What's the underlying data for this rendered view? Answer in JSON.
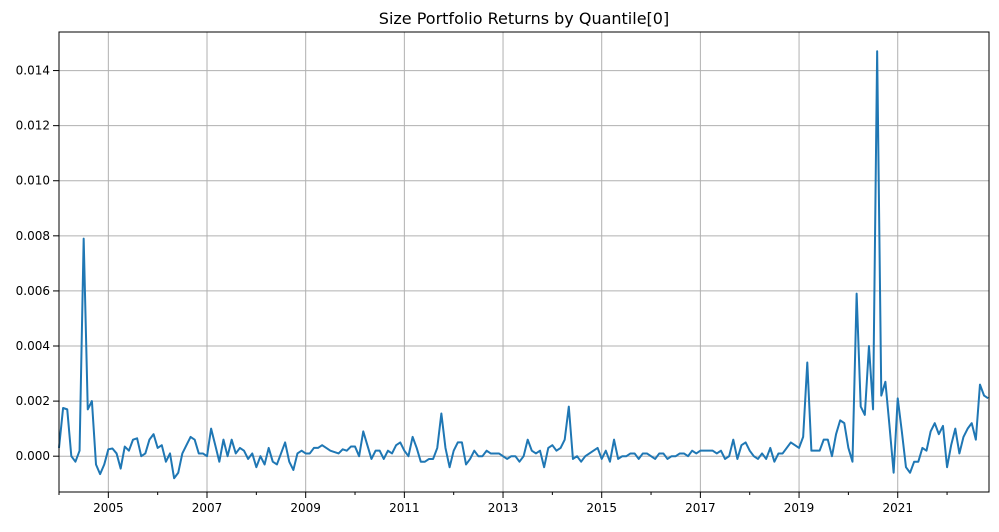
{
  "chart_data": {
    "type": "line",
    "title": "Size Portfolio Returns by Quantile[0]",
    "xlabel": "",
    "ylabel": "",
    "grid": true,
    "line_color": "#1f77b4",
    "xlim": [
      2004.0,
      2022.85
    ],
    "ylim": [
      -0.0013,
      0.0154
    ],
    "x_ticks": [
      2005,
      2007,
      2009,
      2011,
      2013,
      2015,
      2017,
      2019,
      2021
    ],
    "y_ticks": [
      0.0,
      0.002,
      0.004,
      0.006,
      0.008,
      0.01,
      0.012,
      0.014
    ],
    "x_tick_labels": [
      "2005",
      "2007",
      "2009",
      "2011",
      "2013",
      "2015",
      "2017",
      "2019",
      "2021"
    ],
    "y_tick_labels": [
      "0.000",
      "0.002",
      "0.004",
      "0.006",
      "0.008",
      "0.010",
      "0.012",
      "0.014"
    ],
    "series": [
      {
        "x": [
          2004.0,
          2004.083,
          2004.167,
          2004.25,
          2004.333,
          2004.417,
          2004.5,
          2004.583,
          2004.667,
          2004.75,
          2004.833,
          2004.917,
          2005.0,
          2005.083,
          2005.167,
          2005.25,
          2005.333,
          2005.417,
          2005.5,
          2005.583,
          2005.667,
          2005.75,
          2005.833,
          2005.917,
          2006.0,
          2006.083,
          2006.167,
          2006.25,
          2006.333,
          2006.417,
          2006.5,
          2006.583,
          2006.667,
          2006.75,
          2006.833,
          2006.917,
          2007.0,
          2007.083,
          2007.167,
          2007.25,
          2007.333,
          2007.417,
          2007.5,
          2007.583,
          2007.667,
          2007.75,
          2007.833,
          2007.917,
          2008.0,
          2008.083,
          2008.167,
          2008.25,
          2008.333,
          2008.417,
          2008.5,
          2008.583,
          2008.667,
          2008.75,
          2008.833,
          2008.917,
          2009.0,
          2009.083,
          2009.167,
          2009.25,
          2009.333,
          2009.417,
          2009.5,
          2009.583,
          2009.667,
          2009.75,
          2009.833,
          2009.917,
          2010.0,
          2010.083,
          2010.167,
          2010.25,
          2010.333,
          2010.417,
          2010.5,
          2010.583,
          2010.667,
          2010.75,
          2010.833,
          2010.917,
          2011.0,
          2011.083,
          2011.167,
          2011.25,
          2011.333,
          2011.417,
          2011.5,
          2011.583,
          2011.667,
          2011.75,
          2011.833,
          2011.917,
          2012.0,
          2012.083,
          2012.167,
          2012.25,
          2012.333,
          2012.417,
          2012.5,
          2012.583,
          2012.667,
          2012.75,
          2012.833,
          2012.917,
          2013.0,
          2013.083,
          2013.167,
          2013.25,
          2013.333,
          2013.417,
          2013.5,
          2013.583,
          2013.667,
          2013.75,
          2013.833,
          2013.917,
          2014.0,
          2014.083,
          2014.167,
          2014.25,
          2014.333,
          2014.417,
          2014.5,
          2014.583,
          2014.667,
          2014.75,
          2014.833,
          2014.917,
          2015.0,
          2015.083,
          2015.167,
          2015.25,
          2015.333,
          2015.417,
          2015.5,
          2015.583,
          2015.667,
          2015.75,
          2015.833,
          2015.917,
          2016.0,
          2016.083,
          2016.167,
          2016.25,
          2016.333,
          2016.417,
          2016.5,
          2016.583,
          2016.667,
          2016.75,
          2016.833,
          2016.917,
          2017.0,
          2017.083,
          2017.167,
          2017.25,
          2017.333,
          2017.417,
          2017.5,
          2017.583,
          2017.667,
          2017.75,
          2017.833,
          2017.917,
          2018.0,
          2018.083,
          2018.167,
          2018.25,
          2018.333,
          2018.417,
          2018.5,
          2018.583,
          2018.667,
          2018.75,
          2018.833,
          2018.917,
          2019.0,
          2019.083,
          2019.167,
          2019.25,
          2019.333,
          2019.417,
          2019.5,
          2019.583,
          2019.667,
          2019.75,
          2019.833,
          2019.917,
          2020.0,
          2020.083,
          2020.167,
          2020.25,
          2020.333,
          2020.417,
          2020.5,
          2020.583,
          2020.667,
          2020.75,
          2020.833,
          2020.917,
          2021.0,
          2021.083,
          2021.167,
          2021.25,
          2021.333,
          2021.417,
          2021.5,
          2021.583,
          2021.667,
          2021.75,
          2021.833,
          2021.917,
          2022.0,
          2022.083,
          2022.167,
          2022.25,
          2022.333,
          2022.417,
          2022.5,
          2022.583,
          2022.667,
          2022.75,
          2022.833
        ],
        "y": [
          0.0003,
          0.00175,
          0.0017,
          0.0,
          -0.0002,
          0.0002,
          0.0079,
          0.0017,
          0.002,
          -0.0003,
          -0.00065,
          -0.0003,
          0.00025,
          0.00028,
          0.0001,
          -0.00045,
          0.00035,
          0.0002,
          0.0006,
          0.00065,
          0.0,
          0.0001,
          0.0006,
          0.0008,
          0.0003,
          0.0004,
          -0.0002,
          0.0001,
          -0.0008,
          -0.0006,
          0.0001,
          0.0004,
          0.0007,
          0.0006,
          0.0001,
          0.0001,
          0.0,
          0.001,
          0.0004,
          -0.0002,
          0.0006,
          0.0,
          0.0006,
          0.0001,
          0.0003,
          0.0002,
          -0.0001,
          0.0001,
          -0.0004,
          0.0,
          -0.0003,
          0.0003,
          -0.0002,
          -0.0003,
          0.0001,
          0.0005,
          -0.0002,
          -0.0005,
          0.0001,
          0.0002,
          0.0001,
          0.0001,
          0.0003,
          0.0003,
          0.0004,
          0.0003,
          0.0002,
          0.00015,
          0.0001,
          0.00025,
          0.0002,
          0.00035,
          0.00035,
          0.0,
          0.0009,
          0.0004,
          -0.0001,
          0.0002,
          0.0002,
          -0.0001,
          0.0002,
          0.0001,
          0.0004,
          0.0005,
          0.0002,
          0.0,
          0.0007,
          0.0003,
          -0.0002,
          -0.0002,
          -0.0001,
          -0.0001,
          0.0003,
          0.00155,
          0.0003,
          -0.0004,
          0.0002,
          0.0005,
          0.0005,
          -0.0003,
          -0.0001,
          0.0002,
          0.0,
          0.0,
          0.0002,
          0.0001,
          0.0001,
          0.0001,
          0.0,
          -0.0001,
          0.0,
          0.0,
          -0.0002,
          0.0,
          0.0006,
          0.0002,
          0.0001,
          0.0002,
          -0.0004,
          0.0003,
          0.0004,
          0.0002,
          0.0003,
          0.0006,
          0.0018,
          -0.0001,
          0.0,
          -0.0002,
          0.0,
          0.0001,
          0.0002,
          0.0003,
          -0.0001,
          0.0002,
          -0.0002,
          0.0006,
          -0.0001,
          0.0,
          0.0,
          0.0001,
          0.0001,
          -0.0001,
          0.0001,
          0.0001,
          0.0,
          -0.0001,
          0.0001,
          0.0001,
          -0.0001,
          0.0,
          0.0,
          0.0001,
          0.0001,
          0.0,
          0.0002,
          0.0001,
          0.0002,
          0.0002,
          0.0002,
          0.0002,
          0.0001,
          0.0002,
          -0.0001,
          0.0,
          0.0006,
          -0.0001,
          0.0004,
          0.0005,
          0.0002,
          0.0,
          -0.0001,
          0.0001,
          -0.0001,
          0.0003,
          -0.0002,
          0.0001,
          0.0001,
          0.0003,
          0.0005,
          0.0004,
          0.0003,
          0.0007,
          0.0034,
          0.0002,
          0.0002,
          0.0002,
          0.0006,
          0.0006,
          0.0,
          0.0008,
          0.0013,
          0.0012,
          0.0003,
          -0.0002,
          0.0059,
          0.0018,
          0.0015,
          0.004,
          0.0017,
          0.0147,
          0.0022,
          0.0027,
          0.0011,
          -0.0006,
          0.0021,
          0.0009,
          -0.0004,
          -0.0006,
          -0.0002,
          -0.0002,
          0.0003,
          0.0002,
          0.0009,
          0.0012,
          0.0008,
          0.0011,
          -0.0004,
          0.0004,
          0.001,
          0.0001,
          0.0007,
          0.001,
          0.0012,
          0.0006,
          0.0026,
          0.0022,
          0.0021
        ]
      }
    ]
  }
}
